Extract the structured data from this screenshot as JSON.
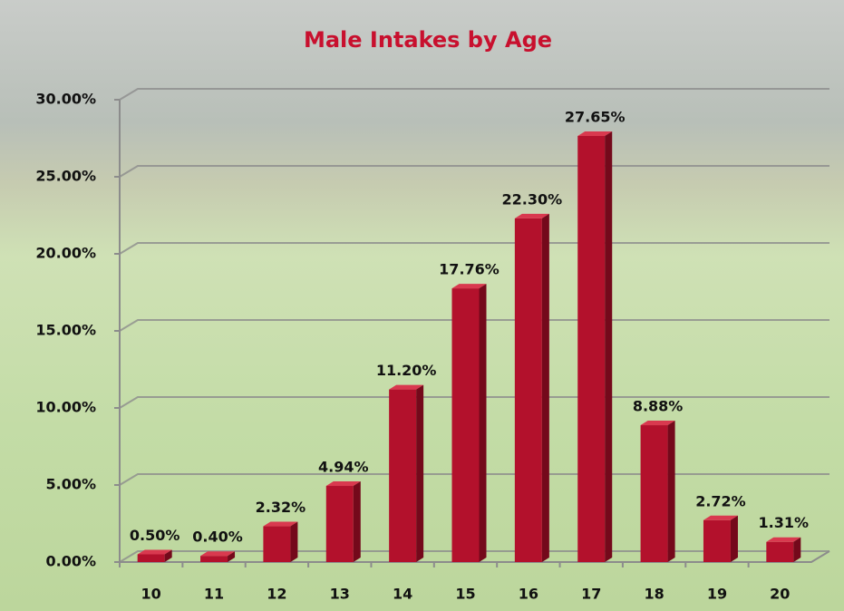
{
  "chart_data": {
    "type": "bar3d",
    "title": "Male Intakes by Age",
    "categories": [
      "10",
      "11",
      "12",
      "13",
      "14",
      "15",
      "16",
      "17",
      "18",
      "19",
      "20"
    ],
    "values": [
      0.5,
      0.4,
      2.32,
      4.94,
      11.2,
      17.76,
      22.3,
      27.65,
      8.88,
      2.72,
      1.31
    ],
    "value_labels": [
      "0.50%",
      "0.40%",
      "2.32%",
      "4.94%",
      "11.20%",
      "17.76%",
      "22.30%",
      "27.65%",
      "8.88%",
      "2.72%",
      "1.31%"
    ],
    "color": "#b3112c",
    "ylim": [
      0,
      30
    ],
    "yticks": [
      {
        "value": 0,
        "label": "0.00%"
      },
      {
        "value": 5,
        "label": "5.00%"
      },
      {
        "value": 10,
        "label": "10.00%"
      },
      {
        "value": 15,
        "label": "15.00%"
      },
      {
        "value": 20,
        "label": "20.00%"
      },
      {
        "value": 25,
        "label": "25.00%"
      },
      {
        "value": 30,
        "label": "30.00%"
      }
    ],
    "grid": true
  }
}
